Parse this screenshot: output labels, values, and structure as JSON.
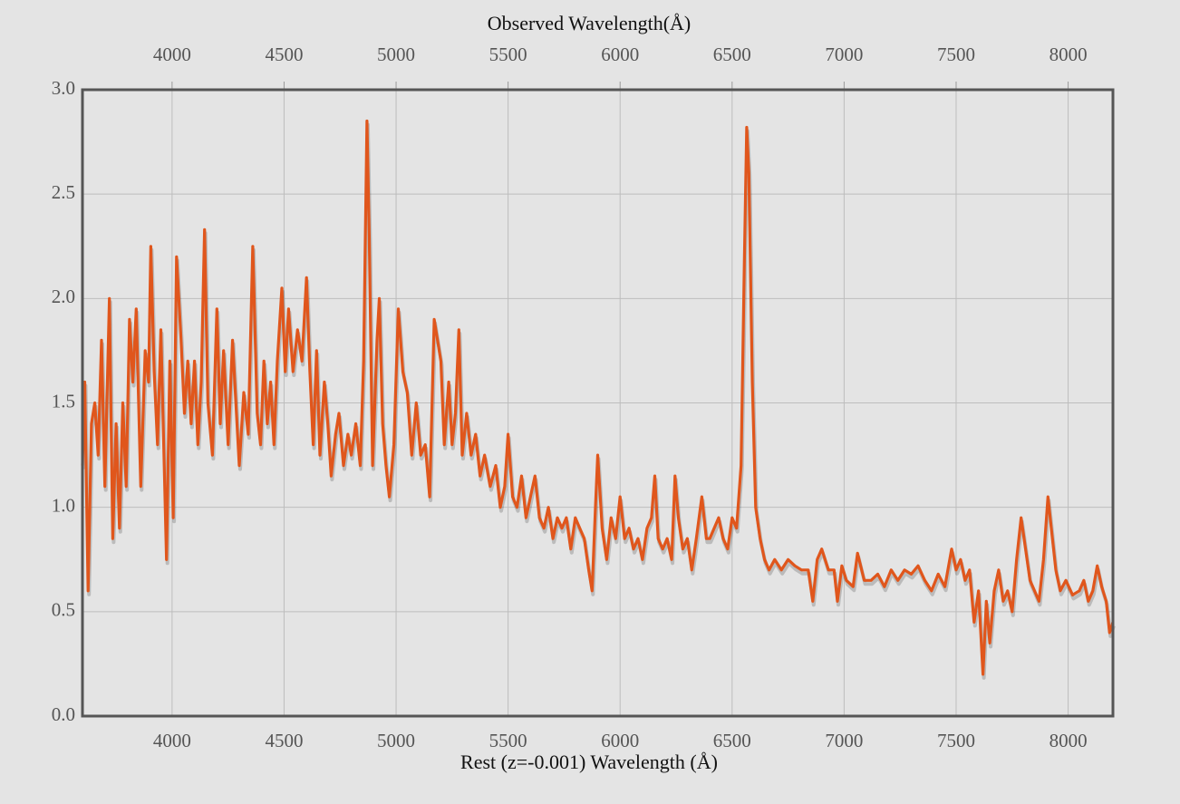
{
  "chart_data": {
    "type": "line",
    "title": "Observed Wavelength(Å)",
    "x_label": "Rest (z=-0.001) Wavelength (Å)",
    "color": "#e0561c",
    "grid": true,
    "xlim": [
      3600,
      8200
    ],
    "xticks": [
      4000,
      4500,
      5000,
      5500,
      6000,
      6500,
      7000,
      7500,
      8000
    ],
    "x2lim": [
      3600,
      8200
    ],
    "x2ticks": [
      4000,
      4500,
      5000,
      5500,
      6000,
      6500,
      7000,
      7500,
      8000
    ],
    "ylim": [
      0,
      3
    ],
    "yticks": [
      {
        "value": 0,
        "label": "0.0"
      },
      0.5,
      {
        "value": 1,
        "label": "1.0"
      },
      1.5,
      {
        "value": 2,
        "label": "2.0"
      },
      2.5,
      {
        "value": 3,
        "label": "3.0"
      }
    ],
    "x": [
      3600,
      3610,
      3625,
      3640,
      3655,
      3670,
      3685,
      3700,
      3720,
      3735,
      3750,
      3765,
      3780,
      3795,
      3810,
      3825,
      3840,
      3860,
      3880,
      3895,
      3905,
      3920,
      3935,
      3950,
      3965,
      3975,
      3990,
      4005,
      4020,
      4040,
      4055,
      4070,
      4085,
      4100,
      4115,
      4130,
      4145,
      4160,
      4180,
      4200,
      4215,
      4230,
      4250,
      4270,
      4290,
      4300,
      4320,
      4340,
      4360,
      4380,
      4395,
      4410,
      4425,
      4440,
      4455,
      4470,
      4490,
      4505,
      4520,
      4540,
      4560,
      4580,
      4600,
      4615,
      4630,
      4645,
      4660,
      4680,
      4695,
      4710,
      4730,
      4745,
      4765,
      4785,
      4800,
      4820,
      4840,
      4855,
      4870,
      4880,
      4895,
      4915,
      4925,
      4940,
      4955,
      4970,
      4990,
      5010,
      5030,
      5050,
      5070,
      5090,
      5110,
      5130,
      5150,
      5170,
      5185,
      5200,
      5215,
      5235,
      5250,
      5265,
      5280,
      5295,
      5315,
      5335,
      5355,
      5375,
      5395,
      5420,
      5445,
      5465,
      5485,
      5500,
      5520,
      5540,
      5560,
      5580,
      5600,
      5620,
      5640,
      5660,
      5680,
      5700,
      5720,
      5740,
      5760,
      5780,
      5800,
      5820,
      5840,
      5860,
      5875,
      5890,
      5900,
      5920,
      5940,
      5960,
      5980,
      6000,
      6020,
      6040,
      6060,
      6080,
      6100,
      6120,
      6140,
      6155,
      6170,
      6190,
      6210,
      6230,
      6245,
      6260,
      6280,
      6300,
      6320,
      6340,
      6365,
      6385,
      6400,
      6420,
      6440,
      6460,
      6480,
      6500,
      6520,
      6540,
      6555,
      6565,
      6575,
      6590,
      6605,
      6625,
      6645,
      6665,
      6690,
      6720,
      6750,
      6780,
      6810,
      6840,
      6860,
      6880,
      6900,
      6930,
      6955,
      6970,
      6990,
      7010,
      7040,
      7060,
      7090,
      7120,
      7150,
      7180,
      7210,
      7240,
      7270,
      7300,
      7330,
      7360,
      7390,
      7420,
      7450,
      7480,
      7500,
      7520,
      7540,
      7560,
      7580,
      7600,
      7620,
      7635,
      7650,
      7670,
      7690,
      7710,
      7730,
      7750,
      7770,
      7790,
      7810,
      7830,
      7850,
      7870,
      7890,
      7910,
      7925,
      7945,
      7965,
      7990,
      8020,
      8050,
      8070,
      8090,
      8110,
      8130,
      8150,
      8170,
      8185,
      8200
    ],
    "values": [
      1.2,
      1.6,
      0.6,
      1.4,
      1.5,
      1.25,
      1.8,
      1.1,
      2.0,
      0.85,
      1.4,
      0.9,
      1.5,
      1.1,
      1.9,
      1.6,
      1.95,
      1.1,
      1.75,
      1.6,
      2.25,
      1.65,
      1.3,
      1.85,
      1.2,
      0.75,
      1.7,
      0.95,
      2.2,
      1.8,
      1.45,
      1.7,
      1.4,
      1.7,
      1.3,
      1.6,
      2.33,
      1.5,
      1.25,
      1.95,
      1.4,
      1.75,
      1.3,
      1.8,
      1.4,
      1.2,
      1.55,
      1.35,
      2.25,
      1.45,
      1.3,
      1.7,
      1.4,
      1.6,
      1.3,
      1.7,
      2.05,
      1.65,
      1.95,
      1.65,
      1.85,
      1.7,
      2.1,
      1.65,
      1.3,
      1.75,
      1.25,
      1.6,
      1.4,
      1.15,
      1.35,
      1.45,
      1.2,
      1.35,
      1.25,
      1.4,
      1.2,
      1.7,
      2.85,
      2.3,
      1.2,
      1.8,
      2.0,
      1.4,
      1.2,
      1.05,
      1.3,
      1.95,
      1.65,
      1.55,
      1.25,
      1.5,
      1.25,
      1.3,
      1.05,
      1.9,
      1.8,
      1.7,
      1.3,
      1.6,
      1.3,
      1.45,
      1.85,
      1.25,
      1.45,
      1.25,
      1.35,
      1.15,
      1.25,
      1.1,
      1.2,
      1.0,
      1.1,
      1.35,
      1.05,
      1.0,
      1.15,
      0.95,
      1.05,
      1.15,
      0.95,
      0.9,
      1.0,
      0.85,
      0.95,
      0.9,
      0.95,
      0.8,
      0.95,
      0.9,
      0.85,
      0.7,
      0.6,
      1.0,
      1.25,
      0.9,
      0.75,
      0.95,
      0.85,
      1.05,
      0.85,
      0.9,
      0.8,
      0.85,
      0.75,
      0.9,
      0.95,
      1.15,
      0.85,
      0.8,
      0.85,
      0.75,
      1.15,
      0.95,
      0.8,
      0.85,
      0.7,
      0.85,
      1.05,
      0.85,
      0.85,
      0.9,
      0.95,
      0.85,
      0.8,
      0.95,
      0.9,
      1.2,
      2.2,
      2.82,
      2.6,
      1.6,
      1.0,
      0.85,
      0.75,
      0.7,
      0.75,
      0.7,
      0.75,
      0.72,
      0.7,
      0.7,
      0.55,
      0.75,
      0.8,
      0.7,
      0.7,
      0.55,
      0.72,
      0.65,
      0.62,
      0.78,
      0.65,
      0.65,
      0.68,
      0.62,
      0.7,
      0.65,
      0.7,
      0.68,
      0.72,
      0.65,
      0.6,
      0.68,
      0.62,
      0.8,
      0.7,
      0.75,
      0.65,
      0.7,
      0.45,
      0.6,
      0.2,
      0.55,
      0.35,
      0.6,
      0.7,
      0.55,
      0.6,
      0.5,
      0.75,
      0.95,
      0.8,
      0.65,
      0.6,
      0.55,
      0.75,
      1.05,
      0.9,
      0.7,
      0.6,
      0.65,
      0.58,
      0.6,
      0.65,
      0.55,
      0.6,
      0.72,
      0.62,
      0.55,
      0.4,
      0.45
    ]
  }
}
